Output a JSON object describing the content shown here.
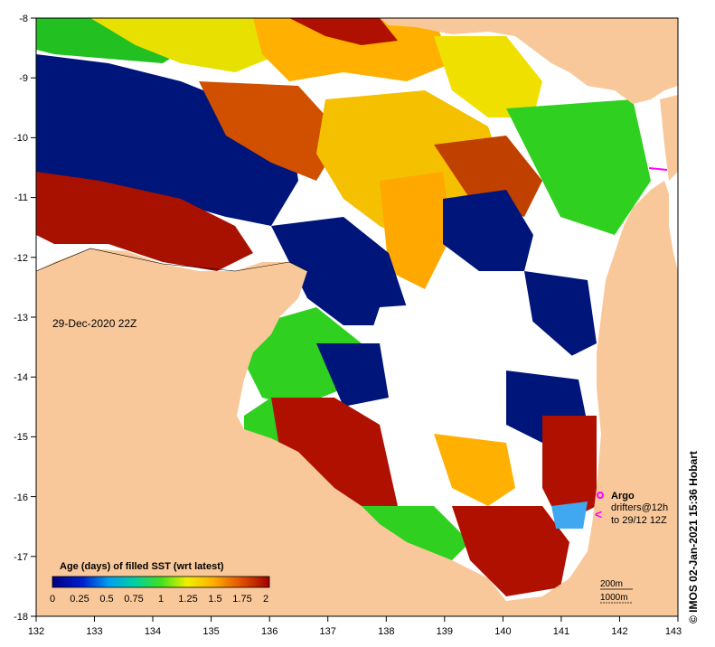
{
  "map": {
    "timestamp": "29-Dec-2020 22Z",
    "credit": "© IMOS 02-Jan-2021 15:36 Hobart",
    "lon_ticks": [
      "132",
      "133",
      "134",
      "135",
      "136",
      "137",
      "138",
      "139",
      "140",
      "141",
      "142",
      "143"
    ],
    "lat_ticks": [
      "-8",
      "-9",
      "-10",
      "-11",
      "-12",
      "-13",
      "-14",
      "-15",
      "-16",
      "-17",
      "-18"
    ],
    "colorbar": {
      "title": "Age (days) of filled SST (wrt latest)",
      "ticks": [
        "0",
        "0.25",
        "0.5",
        "0.75",
        "1",
        "1.25",
        "1.5",
        "1.75",
        "2"
      ]
    },
    "legend": {
      "argo": "Argo",
      "drifters_line1": "drifters@12h",
      "drifters_line2": "to 29/12 12Z"
    },
    "scale": {
      "depth1": "200m",
      "depth2": "1000m"
    },
    "colors": {
      "land": "#f9c89a",
      "no_data": "#ffffff",
      "age_0": "#000080",
      "age_2": "#a00000",
      "argo_marker": "#ff00ff"
    }
  }
}
